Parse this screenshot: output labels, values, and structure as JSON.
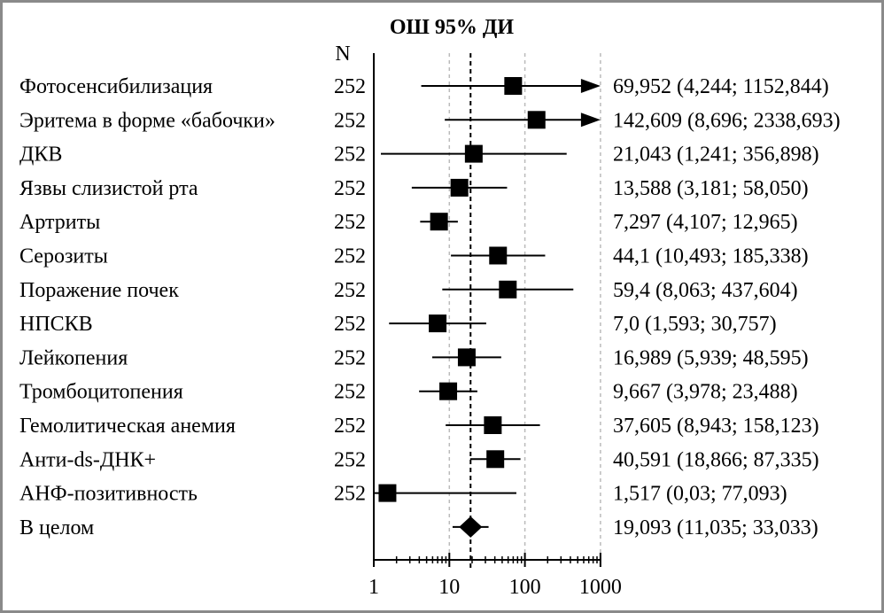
{
  "chart_data": {
    "type": "forest",
    "title": "ОШ 95% ДИ",
    "n_header": "N",
    "xscale": "log",
    "xlim": [
      1,
      1000
    ],
    "xticks": [
      1,
      10,
      100,
      1000
    ],
    "xtick_labels": [
      "1",
      "10",
      "100",
      "1000"
    ],
    "reference_line": 19.093,
    "gridlines": [
      10,
      100,
      1000
    ],
    "rows": [
      {
        "label": "Фотосенсибилизация",
        "n": "252",
        "or": 69.952,
        "lo": 4.244,
        "hi": 1152.844,
        "text": "69,952 (4,244; 1152,844)"
      },
      {
        "label": "Эритема в форме «бабочки»",
        "n": "252",
        "or": 142.609,
        "lo": 8.696,
        "hi": 2338.693,
        "text": "142,609 (8,696; 2338,693)"
      },
      {
        "label": "ДКВ",
        "n": "252",
        "or": 21.043,
        "lo": 1.241,
        "hi": 356.898,
        "text": "21,043 (1,241; 356,898)"
      },
      {
        "label": "Язвы слизистой рта",
        "n": "252",
        "or": 13.588,
        "lo": 3.181,
        "hi": 58.05,
        "text": "13,588 (3,181; 58,050)"
      },
      {
        "label": "Артриты",
        "n": "252",
        "or": 7.297,
        "lo": 4.107,
        "hi": 12.965,
        "text": "7,297 (4,107; 12,965)"
      },
      {
        "label": "Серозиты",
        "n": "252",
        "or": 44.1,
        "lo": 10.493,
        "hi": 185.338,
        "text": "44,1 (10,493; 185,338)"
      },
      {
        "label": "Поражение почек",
        "n": "252",
        "or": 59.4,
        "lo": 8.063,
        "hi": 437.604,
        "text": "59,4 (8,063; 437,604)"
      },
      {
        "label": "НПСКВ",
        "n": "252",
        "or": 7.0,
        "lo": 1.593,
        "hi": 30.757,
        "text": "7,0 (1,593; 30,757)"
      },
      {
        "label": "Лейкопения",
        "n": "252",
        "or": 16.989,
        "lo": 5.939,
        "hi": 48.595,
        "text": "16,989 (5,939; 48,595)"
      },
      {
        "label": "Тромбоцитопения",
        "n": "252",
        "or": 9.667,
        "lo": 3.978,
        "hi": 23.488,
        "text": "9,667 (3,978; 23,488)"
      },
      {
        "label": "Гемолитическая анемия",
        "n": "252",
        "or": 37.605,
        "lo": 8.943,
        "hi": 158.123,
        "text": "37,605 (8,943; 158,123)"
      },
      {
        "label": "Анти-ds-ДНК+",
        "n": "252",
        "or": 40.591,
        "lo": 18.866,
        "hi": 87.335,
        "text": "40,591 (18,866; 87,335)"
      },
      {
        "label": "АНФ-позитивность",
        "n": "252",
        "or": 1.517,
        "lo": 0.03,
        "hi": 77.093,
        "text": "1,517 (0,03; 77,093)"
      },
      {
        "label": "В целом",
        "n": "",
        "or": 19.093,
        "lo": 11.035,
        "hi": 33.033,
        "text": "19,093 (11,035; 33,033)",
        "summary": true
      }
    ]
  }
}
